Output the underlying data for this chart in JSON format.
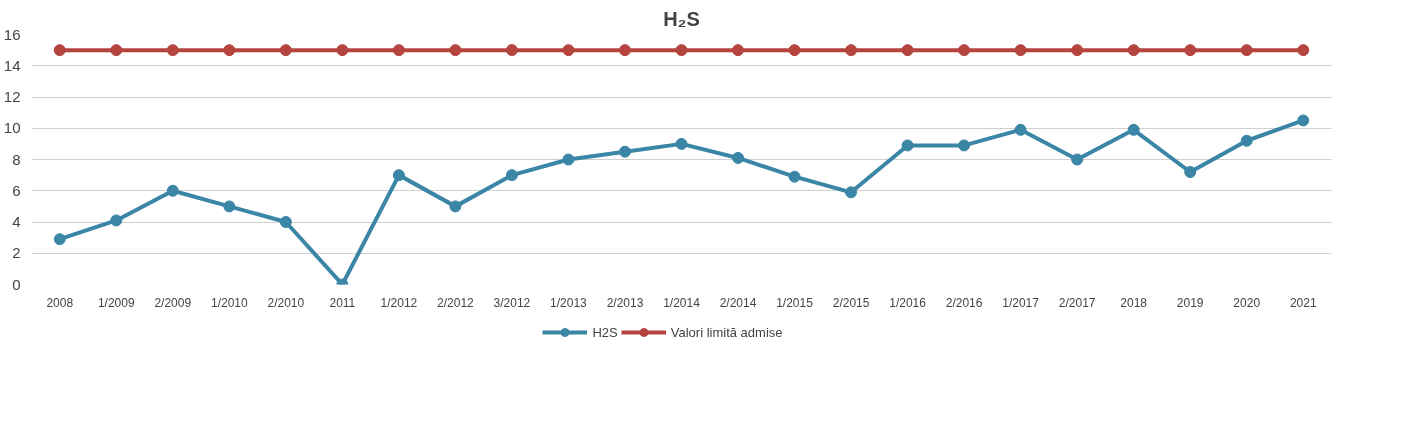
{
  "chart_data": {
    "type": "line",
    "title": "H₂S",
    "categories": [
      "2008",
      "1/2009",
      "2/2009",
      "1/2010",
      "2/2010",
      "2011",
      "1/2012",
      "2/2012",
      "3/2012",
      "1/2013",
      "2/2013",
      "1/2014",
      "2/2014",
      "1/2015",
      "2/2015",
      "1/2016",
      "2/2016",
      "1/2017",
      "2/2017",
      "2018",
      "2019",
      "2020",
      "2021"
    ],
    "series": [
      {
        "name": "H2S",
        "color": "#3b86a6",
        "values": [
          2.9,
          4.1,
          6,
          5,
          4,
          0,
          7,
          5,
          7,
          8,
          8.5,
          9,
          8.1,
          6.9,
          5.9,
          8.9,
          8.9,
          9.9,
          8,
          9.9,
          7.2,
          9.2,
          10.5
        ]
      },
      {
        "name": "Valori limită admise",
        "color": "#b5443f",
        "values": [
          15,
          15,
          15,
          15,
          15,
          15,
          15,
          15,
          15,
          15,
          15,
          15,
          15,
          15,
          15,
          15,
          15,
          15,
          15,
          15,
          15,
          15,
          15
        ]
      }
    ],
    "ylim": [
      0,
      16
    ],
    "yticks": [
      0,
      2,
      4,
      6,
      8,
      10,
      12,
      14,
      16
    ],
    "grid": "y",
    "legend": "bottom",
    "marker": "circle",
    "line_style": "solid"
  }
}
